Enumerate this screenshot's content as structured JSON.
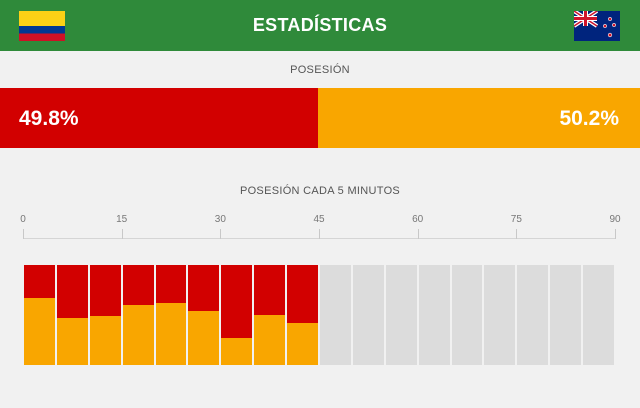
{
  "header": {
    "title": "ESTADÍSTICAS",
    "home_flag": "colombia-flag",
    "away_flag": "new-zealand-flag"
  },
  "possession": {
    "label": "POSESIÓN",
    "home_value": "49.8%",
    "away_value": "50.2%",
    "home_fraction": 0.498,
    "home_color": "#d20000",
    "away_color": "#f9a600"
  },
  "chart_data": {
    "type": "bar",
    "title": "POSESIÓN CADA 5 MINUTOS",
    "x_ticks": [
      "0",
      "15",
      "30",
      "45",
      "60",
      "75",
      "90"
    ],
    "xlim": [
      0,
      90
    ],
    "interval_minutes": 5,
    "categories": [
      "0-5",
      "5-10",
      "10-15",
      "15-20",
      "20-25",
      "25-30",
      "30-35",
      "35-40",
      "40-45",
      "45-50",
      "50-55",
      "55-60",
      "60-65",
      "65-70",
      "70-75",
      "75-80",
      "80-85",
      "85-90"
    ],
    "series": [
      {
        "values": [
          33,
          53,
          51,
          40,
          38,
          46,
          73,
          50,
          58,
          null,
          null,
          null,
          null,
          null,
          null,
          null,
          null,
          null
        ]
      },
      {
        "values": [
          67,
          47,
          49,
          60,
          62,
          54,
          27,
          50,
          42,
          null,
          null,
          null,
          null,
          null,
          null,
          null,
          null,
          null
        ]
      }
    ],
    "colors": {
      "home": "#d20000",
      "away": "#f9a600",
      "empty": "#dcdcdc"
    },
    "ylim": [
      0,
      100
    ]
  }
}
